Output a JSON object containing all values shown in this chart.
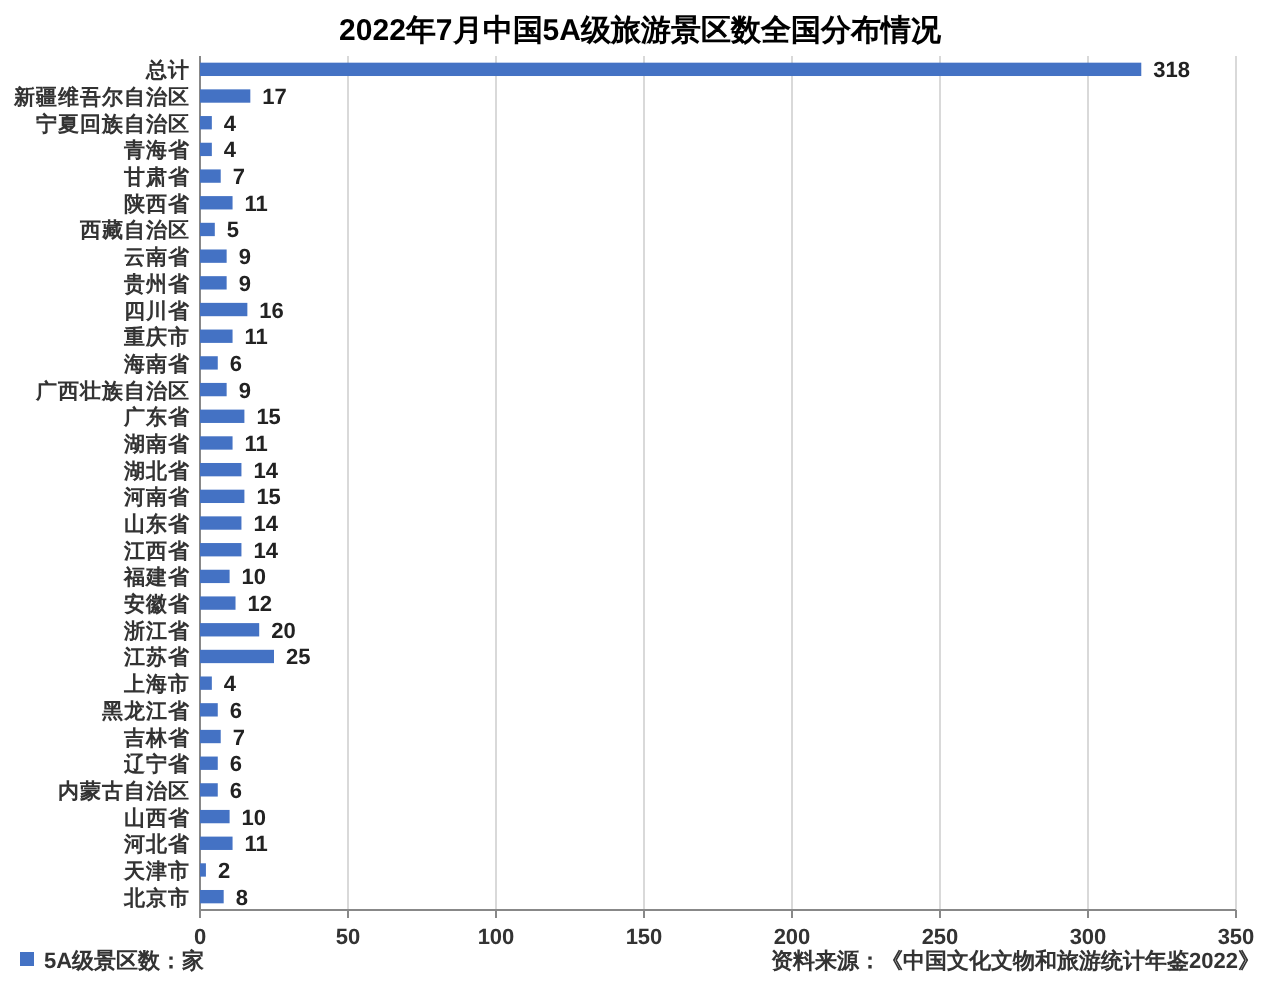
{
  "chart_data": {
    "type": "bar",
    "orientation": "horizontal",
    "title": "2022年7月中国5A级旅游景区数全国分布情况",
    "categories": [
      "总计",
      "新疆维吾尔自治区",
      "宁夏回族自治区",
      "青海省",
      "甘肃省",
      "陕西省",
      "西藏自治区",
      "云南省",
      "贵州省",
      "四川省",
      "重庆市",
      "海南省",
      "广西壮族自治区",
      "广东省",
      "湖南省",
      "湖北省",
      "河南省",
      "山东省",
      "江西省",
      "福建省",
      "安徽省",
      "浙江省",
      "江苏省",
      "上海市",
      "黑龙江省",
      "吉林省",
      "辽宁省",
      "内蒙古自治区",
      "山西省",
      "河北省",
      "天津市",
      "北京市"
    ],
    "series": [
      {
        "name": "5A级景区数：家",
        "color": "#4472c4",
        "values": [
          318,
          17,
          4,
          4,
          7,
          11,
          5,
          9,
          9,
          16,
          11,
          6,
          9,
          15,
          11,
          14,
          15,
          14,
          14,
          10,
          12,
          20,
          25,
          4,
          6,
          7,
          6,
          6,
          10,
          11,
          2,
          8
        ]
      }
    ],
    "xlim": [
      0,
      350
    ],
    "xticks": [
      0,
      50,
      100,
      150,
      200,
      250,
      300,
      350
    ],
    "grid": "x",
    "legend": "bottom left",
    "data_labels": true,
    "annotations": [
      "资料来源：《中国文化文物和旅游统计年鉴2022》"
    ]
  }
}
